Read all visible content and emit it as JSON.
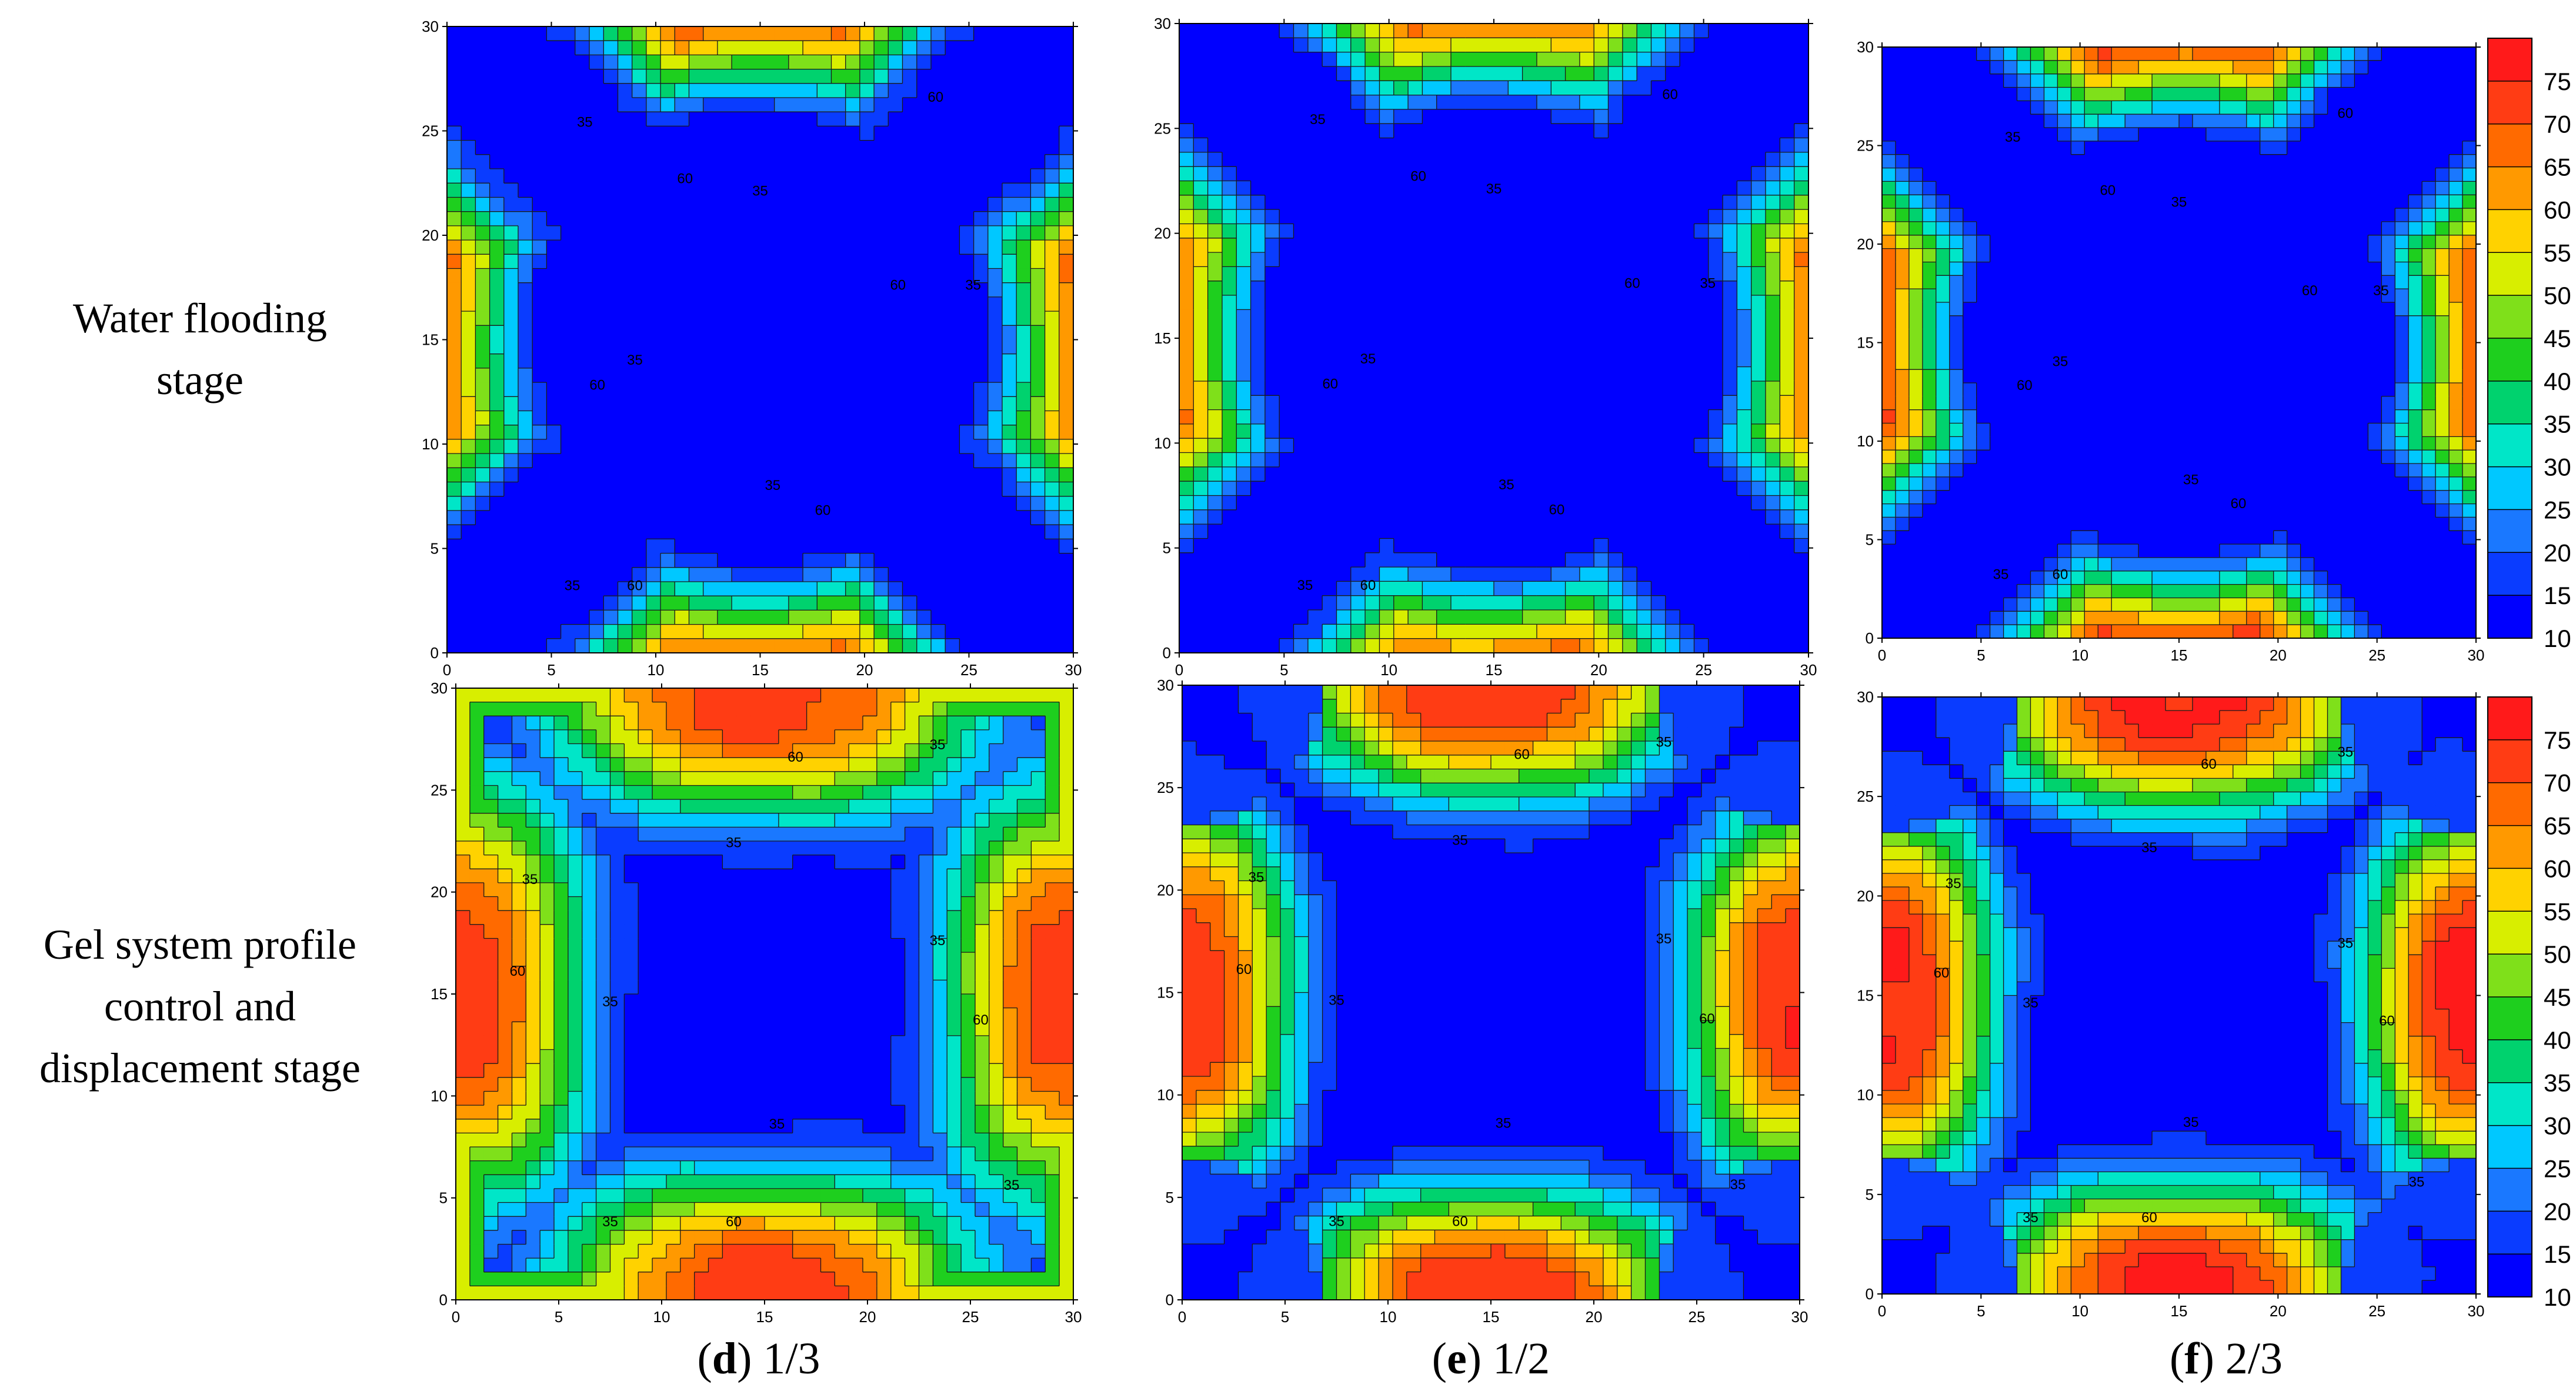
{
  "row_labels": [
    [
      "Water flooding",
      "stage"
    ],
    [
      "Gel system profile",
      "control and",
      "displacement stage"
    ]
  ],
  "captions": [
    {
      "letter": "d",
      "text": "1/3"
    },
    {
      "letter": "e",
      "text": "1/2"
    },
    {
      "letter": "f",
      "text": "2/3"
    }
  ],
  "colorbar": {
    "levels": [
      10,
      15,
      20,
      25,
      30,
      35,
      40,
      45,
      50,
      55,
      60,
      65,
      70,
      75,
      80
    ],
    "labels": [
      "75",
      "70",
      "65",
      "60",
      "55",
      "50",
      "45",
      "40",
      "35",
      "30",
      "25",
      "20",
      "15",
      "10"
    ],
    "colors": [
      "#0000ff",
      "#0a3cff",
      "#1a78ff",
      "#00c8ff",
      "#00e6c8",
      "#00d26e",
      "#1ecf1e",
      "#7fe01a",
      "#d8ee00",
      "#ffd200",
      "#ff9900",
      "#ff6a00",
      "#ff3c14",
      "#ff1a1a"
    ]
  },
  "chart_data": [
    {
      "type": "heatmap",
      "panel": "water-flooding-1",
      "xlim": [
        0,
        30
      ],
      "ylim": [
        0,
        30
      ],
      "x_ticks": [
        "0",
        "5",
        "10",
        "15",
        "20",
        "25",
        "30"
      ],
      "y_ticks": [
        "0",
        "5",
        "10",
        "15",
        "20",
        "25",
        "30"
      ],
      "contour_labels": [
        "35",
        "60"
      ],
      "field": {
        "pattern": "x",
        "lo": 10,
        "hi": 72,
        "w": 3.4,
        "c": 2.2,
        "centerR": 7.5,
        "edgeGain": 1.0
      }
    },
    {
      "type": "heatmap",
      "panel": "water-flooding-2",
      "xlim": [
        0,
        30
      ],
      "ylim": [
        0,
        30
      ],
      "x_ticks": [
        "0",
        "5",
        "10",
        "15",
        "20",
        "25",
        "30"
      ],
      "y_ticks": [
        "0",
        "5",
        "10",
        "15",
        "20",
        "25",
        "30"
      ],
      "contour_labels": [
        "35",
        "60"
      ],
      "field": {
        "pattern": "x",
        "lo": 10,
        "hi": 72,
        "w": 3.3,
        "c": 2.1,
        "centerR": 7.8,
        "edgeGain": 1.0
      }
    },
    {
      "type": "heatmap",
      "panel": "water-flooding-3",
      "xlim": [
        0,
        30
      ],
      "ylim": [
        0,
        30
      ],
      "x_ticks": [
        "0",
        "5",
        "10",
        "15",
        "20",
        "25",
        "30"
      ],
      "y_ticks": [
        "0",
        "5",
        "10",
        "15",
        "20",
        "25",
        "30"
      ],
      "contour_labels": [
        "35",
        "60"
      ],
      "field": {
        "pattern": "x",
        "lo": 10,
        "hi": 74,
        "w": 3.2,
        "c": 2.1,
        "centerR": 7.6,
        "edgeGain": 1.0
      }
    },
    {
      "type": "heatmap",
      "panel": "gel-1-3",
      "xlim": [
        0,
        30
      ],
      "ylim": [
        0,
        30
      ],
      "x_ticks": [
        "0",
        "5",
        "10",
        "15",
        "20",
        "25",
        "30"
      ],
      "y_ticks": [
        "0",
        "5",
        "10",
        "15",
        "20",
        "25",
        "30"
      ],
      "contour_labels": [
        "35",
        "60"
      ],
      "field": {
        "pattern": "gel",
        "lo": 10,
        "hi": 72,
        "w": 6.0,
        "c": 2.2,
        "centerR": 9.5,
        "edgeGain": 0.9,
        "cornerBlue": 0
      }
    },
    {
      "type": "heatmap",
      "panel": "gel-1-2",
      "xlim": [
        0,
        30
      ],
      "ylim": [
        0,
        30
      ],
      "x_ticks": [
        "0",
        "5",
        "10",
        "15",
        "20",
        "25",
        "30"
      ],
      "y_ticks": [
        "0",
        "5",
        "10",
        "15",
        "20",
        "25",
        "30"
      ],
      "contour_labels": [
        "35",
        "60"
      ],
      "field": {
        "pattern": "gel",
        "lo": 10,
        "hi": 74,
        "w": 5.0,
        "c": 2.0,
        "centerR": 10.5,
        "edgeGain": 0.95,
        "cornerBlue": 1
      }
    },
    {
      "type": "heatmap",
      "panel": "gel-2-3",
      "xlim": [
        0,
        30
      ],
      "ylim": [
        0,
        30
      ],
      "x_ticks": [
        "0",
        "5",
        "10",
        "15",
        "20",
        "25",
        "30"
      ],
      "y_ticks": [
        "0",
        "5",
        "10",
        "15",
        "20",
        "25",
        "30"
      ],
      "contour_labels": [
        "35",
        "60"
      ],
      "field": {
        "pattern": "gel",
        "lo": 10,
        "hi": 76,
        "w": 5.2,
        "c": 2.0,
        "centerR": 10.0,
        "edgeGain": 1.0,
        "cornerBlue": 1
      }
    }
  ]
}
